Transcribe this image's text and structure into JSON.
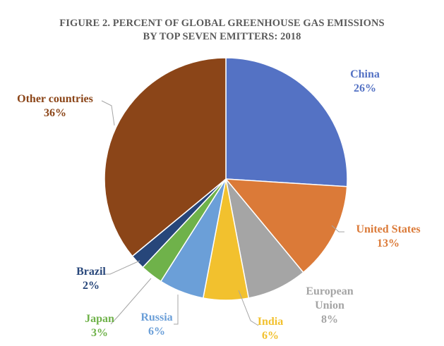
{
  "chart_data": {
    "type": "pie",
    "title_line1": "FIGURE 2. PERCENT OF GLOBAL GREENHOUSE GAS EMISSIONS",
    "title_line2": "BY TOP SEVEN EMITTERS: 2018",
    "slices": [
      {
        "name": "China",
        "value": 26,
        "label": "26%",
        "color": "#5472c4",
        "label_lines": [
          "China",
          "26%"
        ]
      },
      {
        "name": "United States",
        "value": 13,
        "label": "13%",
        "color": "#db7a38",
        "label_lines": [
          "United States",
          "13%"
        ]
      },
      {
        "name": "European Union",
        "value": 8,
        "label": "8%",
        "color": "#a5a5a5",
        "label_lines": [
          "European",
          "Union",
          "8%"
        ]
      },
      {
        "name": "India",
        "value": 6,
        "label": "6%",
        "color": "#f2c12e",
        "label_lines": [
          "India",
          "6%"
        ]
      },
      {
        "name": "Russia",
        "value": 6,
        "label": "6%",
        "color": "#6b9fd8",
        "label_lines": [
          "Russia",
          "6%"
        ]
      },
      {
        "name": "Japan",
        "value": 3,
        "label": "3%",
        "color": "#6fb24a",
        "label_lines": [
          "Japan",
          "3%"
        ]
      },
      {
        "name": "Brazil",
        "value": 2,
        "label": "2%",
        "color": "#27467a",
        "label_lines": [
          "Brazil",
          "2%"
        ]
      },
      {
        "name": "Other countries",
        "value": 36,
        "label": "36%",
        "color": "#8b4518",
        "label_lines": [
          "Other countries",
          "36%"
        ]
      }
    ],
    "legend": "none (data labels with leader lines)"
  }
}
